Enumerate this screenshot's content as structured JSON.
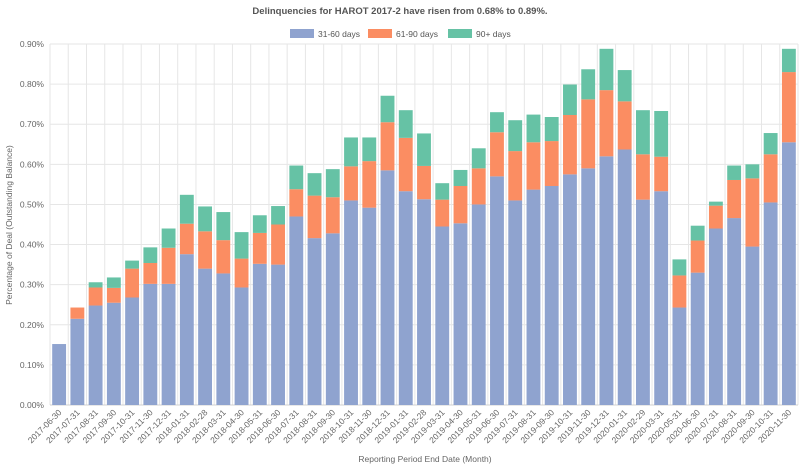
{
  "chart_data": {
    "type": "bar",
    "stacked": true,
    "title": "Delinquencies for HAROT 2017-2 have risen from 0.68% to 0.89%.",
    "xlabel": "Reporting Period End Date (Month)",
    "ylabel": "Percentage of Deal (Outstanding Balance)",
    "ylim": [
      0,
      0.9
    ],
    "yticks": [
      "0.00%",
      "0.10%",
      "0.20%",
      "0.30%",
      "0.40%",
      "0.50%",
      "0.60%",
      "0.70%",
      "0.80%",
      "0.90%"
    ],
    "legend_position": "top-center",
    "categories": [
      "2017-06-30",
      "2017-07-31",
      "2017-08-31",
      "2017-09-30",
      "2017-10-31",
      "2017-11-30",
      "2017-12-31",
      "2018-01-31",
      "2018-02-28",
      "2018-03-31",
      "2018-04-30",
      "2018-05-31",
      "2018-06-30",
      "2018-07-31",
      "2018-08-31",
      "2018-09-30",
      "2018-10-31",
      "2018-11-30",
      "2018-12-31",
      "2019-01-31",
      "2019-02-28",
      "2019-03-31",
      "2019-04-30",
      "2019-05-31",
      "2019-06-30",
      "2019-07-31",
      "2019-08-31",
      "2019-09-30",
      "2019-10-31",
      "2019-11-30",
      "2019-12-31",
      "2020-01-31",
      "2020-02-29",
      "2020-03-31",
      "2020-05-31",
      "2020-06-30",
      "2020-07-31",
      "2020-08-31",
      "2020-09-30",
      "2020-10-31",
      "2020-11-30"
    ],
    "series": [
      {
        "name": "31-60 days",
        "color": "#8fa3cf",
        "values": [
          0.152,
          0.215,
          0.248,
          0.255,
          0.268,
          0.302,
          0.302,
          0.376,
          0.34,
          0.328,
          0.293,
          0.352,
          0.35,
          0.47,
          0.416,
          0.428,
          0.51,
          0.492,
          0.585,
          0.533,
          0.513,
          0.445,
          0.453,
          0.5,
          0.57,
          0.51,
          0.537,
          0.546,
          0.575,
          0.59,
          0.62,
          0.637,
          0.512,
          0.533,
          0.243,
          0.33,
          0.44,
          0.466,
          0.395,
          0.505,
          0.655
        ]
      },
      {
        "name": "61-90 days",
        "color": "#fb8d62",
        "values": [
          0.0,
          0.028,
          0.045,
          0.037,
          0.072,
          0.052,
          0.09,
          0.076,
          0.093,
          0.083,
          0.072,
          0.077,
          0.1,
          0.068,
          0.106,
          0.09,
          0.085,
          0.116,
          0.12,
          0.133,
          0.083,
          0.067,
          0.093,
          0.09,
          0.11,
          0.123,
          0.118,
          0.112,
          0.148,
          0.172,
          0.165,
          0.12,
          0.113,
          0.086,
          0.08,
          0.08,
          0.057,
          0.095,
          0.17,
          0.12,
          0.175
        ]
      },
      {
        "name": "90+ days",
        "color": "#66c2a5",
        "values": [
          0.0,
          0.0,
          0.013,
          0.026,
          0.02,
          0.039,
          0.048,
          0.072,
          0.062,
          0.07,
          0.066,
          0.044,
          0.046,
          0.059,
          0.056,
          0.07,
          0.072,
          0.059,
          0.066,
          0.069,
          0.081,
          0.041,
          0.04,
          0.05,
          0.05,
          0.077,
          0.069,
          0.06,
          0.076,
          0.075,
          0.103,
          0.078,
          0.11,
          0.114,
          0.04,
          0.037,
          0.01,
          0.036,
          0.035,
          0.053,
          0.058
        ]
      }
    ]
  }
}
